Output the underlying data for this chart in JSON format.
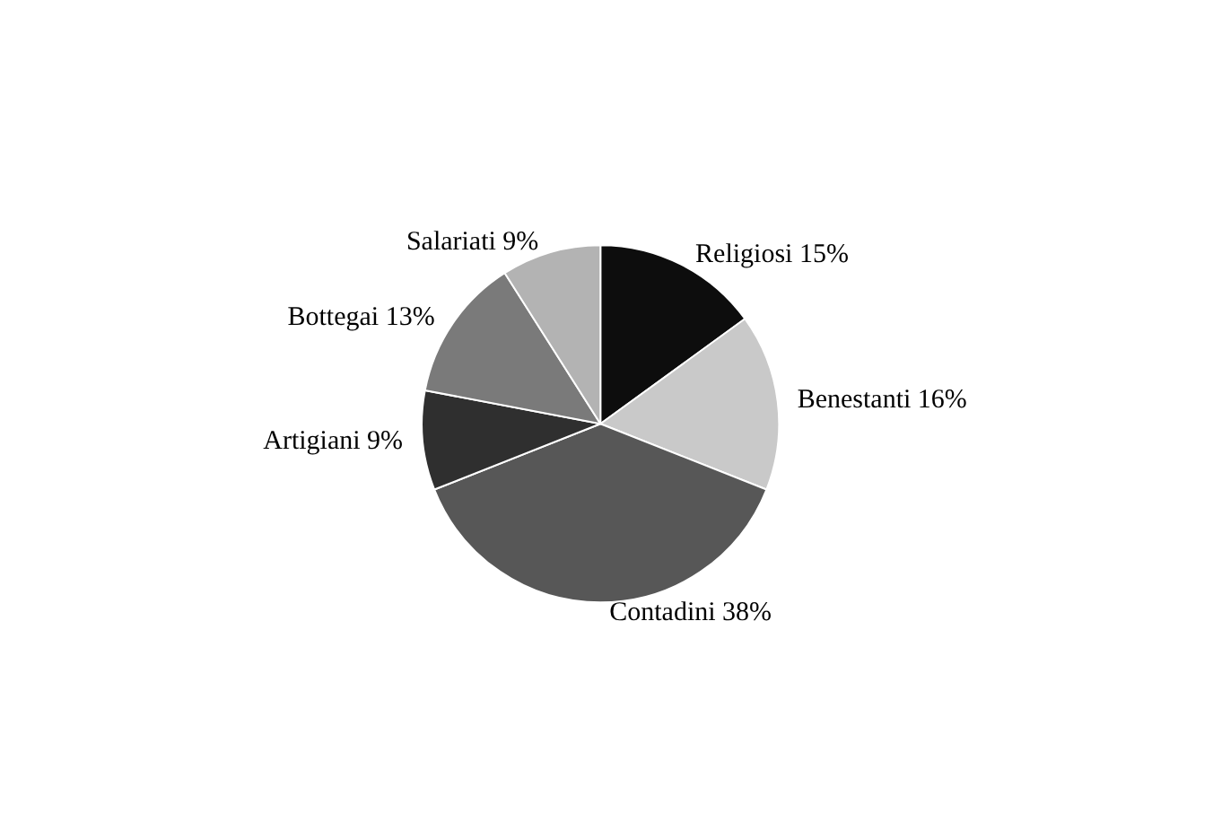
{
  "chart_data": {
    "type": "pie",
    "categories": [
      "Religiosi",
      "Benestanti",
      "Contadini",
      "Artigiani",
      "Bottegai",
      "Salariati"
    ],
    "values": [
      15,
      16,
      38,
      9,
      13,
      9
    ],
    "value_labels": [
      "15%",
      "16%",
      "38%",
      "9%",
      "13%",
      "9%"
    ],
    "colors": [
      "#0d0d0d",
      "#c9c9c9",
      "#575757",
      "#2f2f2f",
      "#7a7a7a",
      "#b3b3b3"
    ],
    "legend": false
  }
}
